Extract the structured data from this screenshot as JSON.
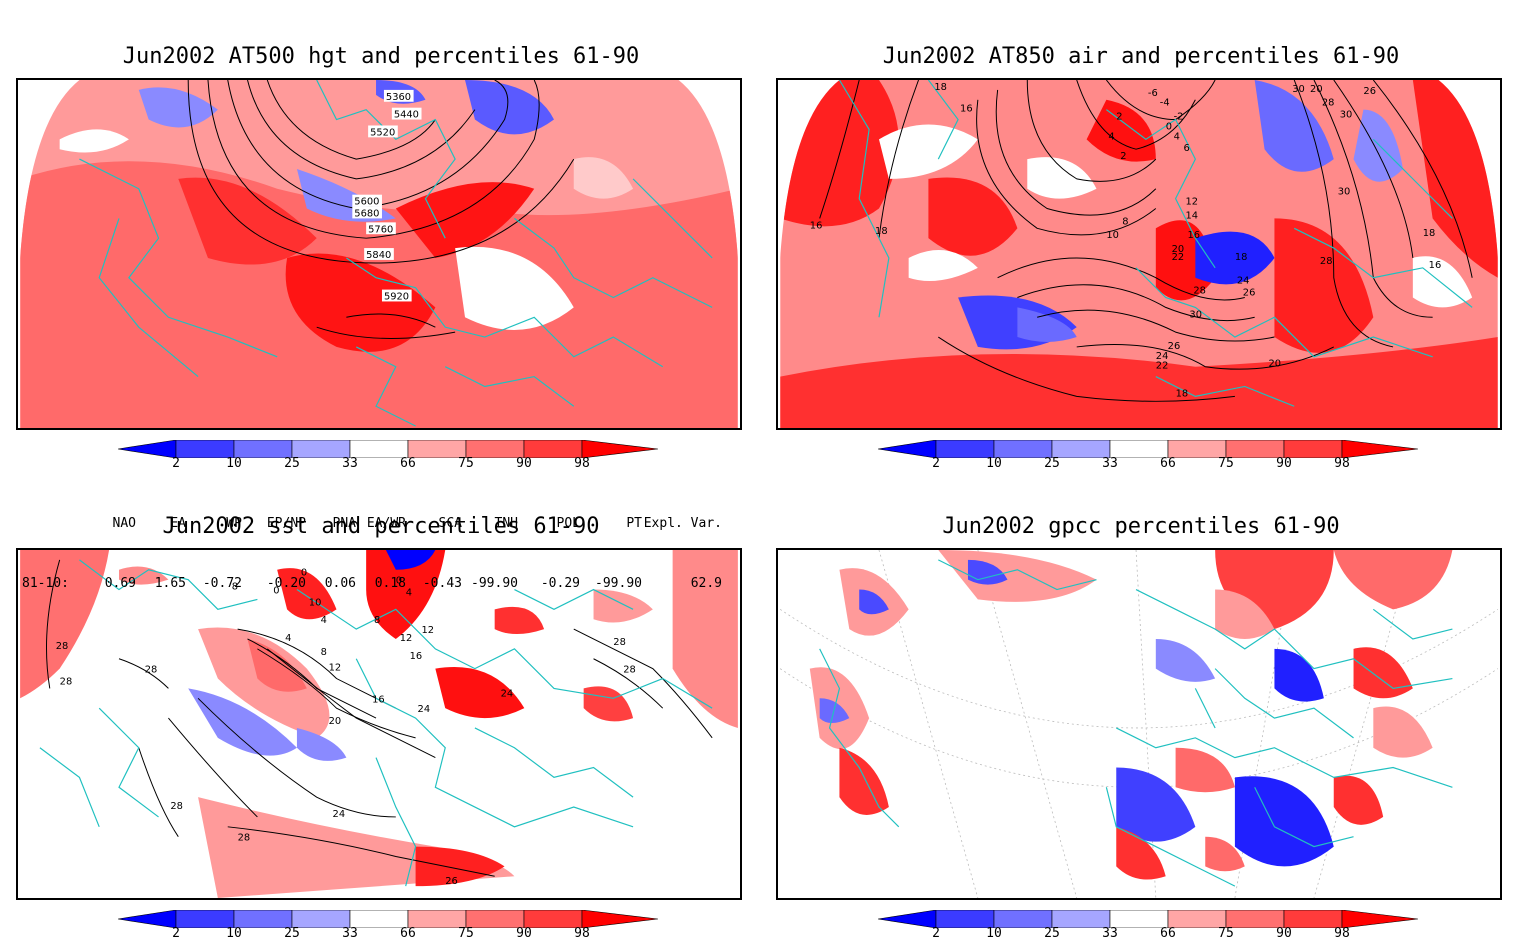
{
  "panels": [
    {
      "title": "Jun2002 AT500 hgt and percentiles 61-90",
      "contour_labels": [
        "5360",
        "5440",
        "5520",
        "5600",
        "5680",
        "5760",
        "5840",
        "5920"
      ]
    },
    {
      "title": "Jun2002 AT850 air and percentiles 61-90",
      "contour_labels": [
        "18",
        "16",
        "16",
        "18",
        "-6",
        "-4",
        "-2",
        "0",
        "2",
        "4",
        "2",
        "4",
        "6",
        "8",
        "10",
        "12",
        "14",
        "16",
        "20",
        "22",
        "18",
        "24",
        "26",
        "28",
        "30",
        "26",
        "24",
        "22",
        "20",
        "18",
        "30",
        "28",
        "30",
        "28",
        "26",
        "20",
        "30",
        "18",
        "16"
      ]
    },
    {
      "title": "Jun2002 sst and percentiles 61-90",
      "contour_labels": [
        "28",
        "28",
        "8",
        "0",
        "0",
        "10",
        "4",
        "0",
        "4",
        "8",
        "12",
        "12",
        "16",
        "4",
        "8",
        "12",
        "16",
        "20",
        "24",
        "24",
        "28",
        "28",
        "28",
        "24",
        "28",
        "26",
        "28"
      ]
    },
    {
      "title": "Jun2002 gpcc percentiles 61-90",
      "contour_labels": []
    }
  ],
  "colorbar": {
    "labels": [
      "2",
      "10",
      "25",
      "33",
      "66",
      "75",
      "90",
      "98"
    ],
    "colors": [
      "#0000ff",
      "#3b3bff",
      "#7070ff",
      "#a6a6ff",
      "#ffffff",
      "#ffa6a6",
      "#ff7070",
      "#ff3b3b",
      "#ff0000"
    ]
  },
  "indices": {
    "headers": [
      "NAO",
      "EA",
      "WP",
      "EP/NP",
      "PNA",
      "EA/WR",
      "SCA",
      "TNH",
      "POL",
      "PT",
      "Expl. Var."
    ],
    "row_label": "81-10:",
    "values": [
      "0.69",
      "1.65",
      "-0.72",
      "-0.20",
      "0.06",
      "0.18",
      "-0.43",
      "-99.90",
      "-0.29",
      "-99.90",
      "62.9"
    ]
  }
}
